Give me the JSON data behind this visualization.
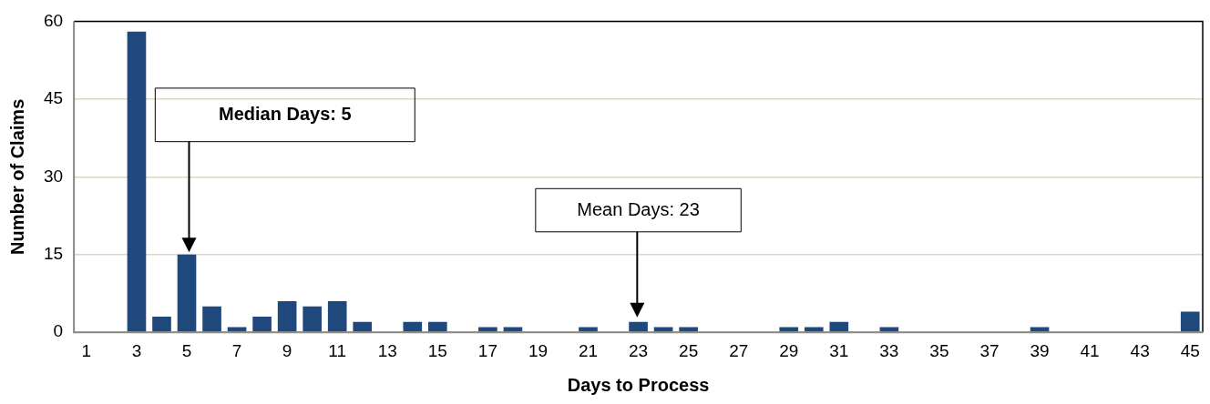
{
  "chart_data": {
    "type": "bar",
    "xlabel": "Days to Process",
    "ylabel": "Number of Claims",
    "x": [
      1,
      2,
      3,
      4,
      5,
      6,
      7,
      8,
      9,
      10,
      11,
      12,
      13,
      14,
      15,
      16,
      17,
      18,
      19,
      20,
      21,
      22,
      23,
      24,
      25,
      26,
      27,
      28,
      29,
      30,
      31,
      32,
      33,
      34,
      35,
      36,
      37,
      38,
      39,
      40,
      41,
      42,
      43,
      44,
      45
    ],
    "values": [
      0,
      0,
      58,
      3,
      15,
      5,
      1,
      3,
      6,
      5,
      6,
      2,
      0,
      2,
      2,
      0,
      1,
      1,
      0,
      0,
      1,
      0,
      2,
      1,
      1,
      0,
      0,
      0,
      1,
      1,
      2,
      0,
      1,
      0,
      0,
      0,
      0,
      0,
      1,
      0,
      0,
      0,
      0,
      0,
      4
    ],
    "color": "#1f497d",
    "xlim": [
      0.5,
      45.5
    ],
    "xticks": [
      1,
      3,
      5,
      7,
      9,
      11,
      13,
      15,
      17,
      19,
      21,
      23,
      25,
      27,
      29,
      31,
      33,
      35,
      37,
      39,
      41,
      43,
      45
    ],
    "ylim": [
      0,
      60
    ],
    "yticks": [
      0,
      15,
      30,
      45,
      60
    ],
    "grid": "y",
    "annotations": [
      "Median Days: 5",
      "Mean Days: 23"
    ]
  }
}
